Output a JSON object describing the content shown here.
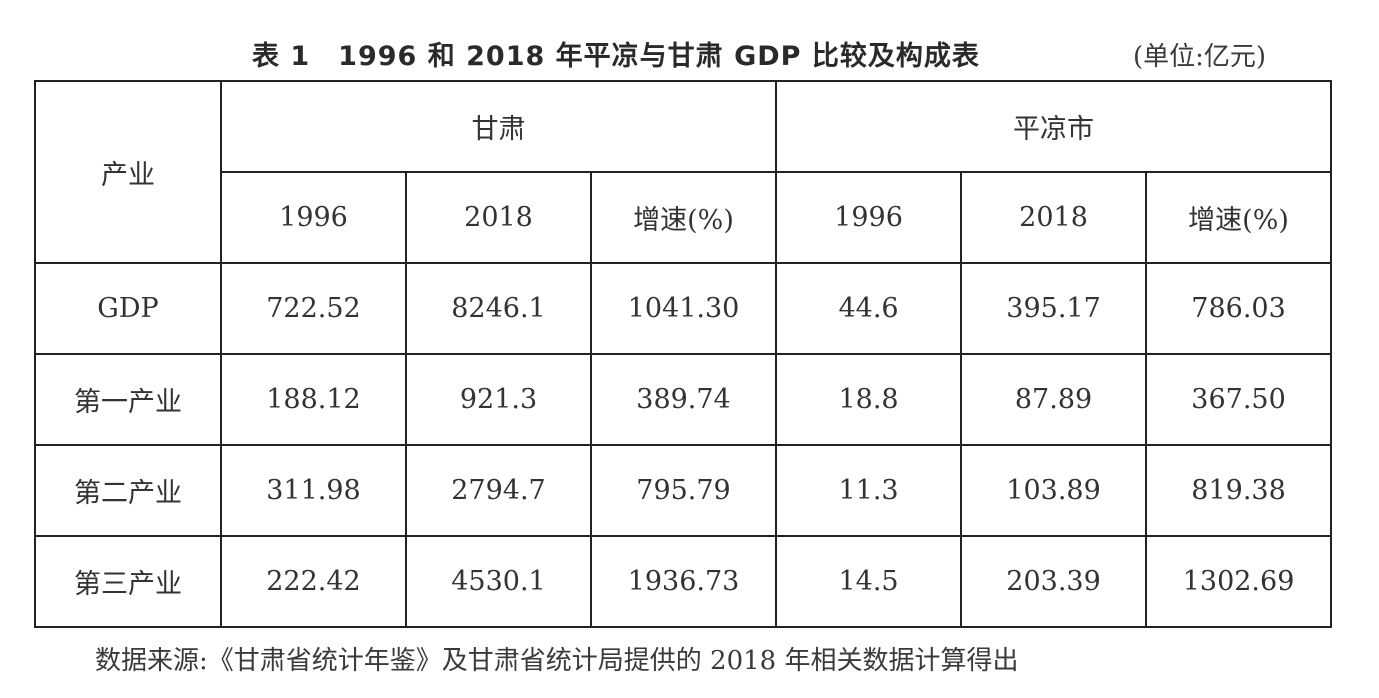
{
  "title": "表 1　1996 和 2018 年平凉与甘肃 GDP 比较及构成表",
  "unit": "(单位:亿元)",
  "table": {
    "row_header": "产业",
    "groups": [
      "甘肃",
      "平凉市"
    ],
    "subheaders": [
      "1996",
      "2018",
      "增速(%)",
      "1996",
      "2018",
      "增速(%)"
    ],
    "rows": [
      {
        "label": "GDP",
        "values": [
          "722.52",
          "8246.1",
          "1041.30",
          "44.6",
          "395.17",
          "786.03"
        ]
      },
      {
        "label": "第一产业",
        "values": [
          "188.12",
          "921.3",
          "389.74",
          "18.8",
          "87.89",
          "367.50"
        ]
      },
      {
        "label": "第二产业",
        "values": [
          "311.98",
          "2794.7",
          "795.79",
          "11.3",
          "103.89",
          "819.38"
        ]
      },
      {
        "label": "第三产业",
        "values": [
          "222.42",
          "4530.1",
          "1936.73",
          "14.5",
          "203.39",
          "1302.69"
        ]
      }
    ]
  },
  "source": "数据来源:《甘肃省统计年鉴》及甘肃省统计局提供的 2018 年相关数据计算得出"
}
